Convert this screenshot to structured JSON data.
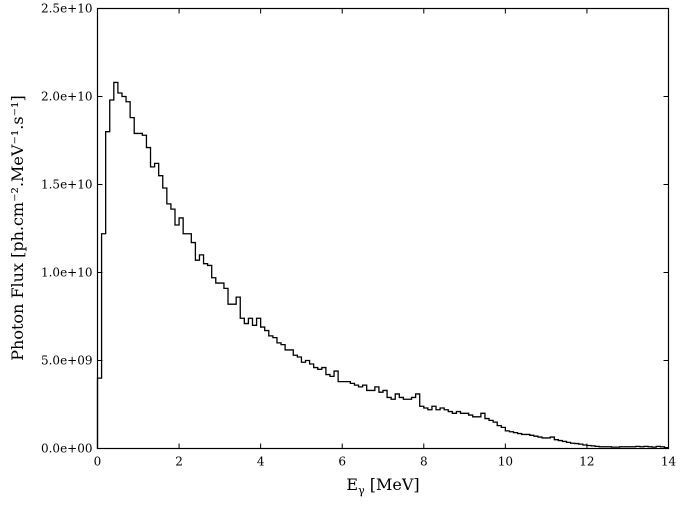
{
  "chart_data": {
    "type": "line",
    "style": "step-histogram",
    "title": "",
    "xlabel": "E_γ [MeV]",
    "xlabel_main": "E",
    "xlabel_sub": "γ",
    "xlabel_unit": " [MeV]",
    "ylabel": "Photon Flux [ph.cm⁻².MeV⁻¹.s⁻¹]",
    "xlim": [
      0,
      14
    ],
    "ylim": [
      0,
      25000000000
    ],
    "grid": false,
    "x_ticks": [
      0,
      2,
      4,
      6,
      8,
      10,
      12,
      14
    ],
    "x_tick_labels": [
      "0",
      "2",
      "4",
      "6",
      "8",
      "10",
      "12",
      "14"
    ],
    "y_ticks": [
      0,
      5000000000,
      10000000000,
      15000000000,
      20000000000,
      25000000000
    ],
    "y_tick_labels": [
      "0.0e+00",
      "5.0e+09",
      "1.0e+10",
      "1.5e+10",
      "2.0e+10",
      "2.5e+10"
    ],
    "bin_width": 0.1,
    "bin_start": 0,
    "value_scale": 1000000000,
    "series": [
      {
        "name": "photon flux",
        "color": "#000000",
        "values": [
          4.0,
          12.2,
          18.0,
          19.8,
          20.8,
          20.2,
          20.0,
          19.7,
          18.8,
          17.9,
          17.9,
          17.8,
          17.1,
          16.0,
          16.2,
          15.5,
          14.8,
          13.9,
          13.6,
          12.7,
          13.1,
          12.2,
          12.2,
          11.7,
          10.7,
          11.0,
          10.5,
          10.4,
          9.7,
          9.4,
          9.4,
          9.1,
          8.2,
          8.2,
          8.6,
          7.4,
          7.1,
          7.4,
          7.0,
          7.4,
          6.9,
          6.7,
          6.4,
          6.3,
          6.0,
          5.9,
          5.6,
          5.6,
          5.3,
          5.2,
          4.9,
          5.0,
          4.8,
          4.6,
          4.5,
          4.6,
          4.2,
          4.1,
          4.4,
          3.8,
          3.8,
          3.8,
          3.7,
          3.6,
          3.5,
          3.6,
          3.3,
          3.3,
          3.5,
          3.2,
          3.3,
          2.9,
          2.8,
          3.1,
          2.9,
          2.8,
          2.8,
          2.9,
          3.1,
          2.4,
          2.3,
          2.2,
          2.4,
          2.2,
          2.3,
          2.2,
          2.1,
          2.0,
          2.1,
          2.0,
          2.0,
          1.9,
          1.8,
          1.8,
          2.0,
          1.7,
          1.6,
          1.5,
          1.3,
          1.2,
          1.0,
          0.95,
          0.9,
          0.85,
          0.8,
          0.8,
          0.75,
          0.7,
          0.65,
          0.6,
          0.6,
          0.65,
          0.5,
          0.45,
          0.4,
          0.35,
          0.3,
          0.28,
          0.25,
          0.2,
          0.17,
          0.15,
          0.12,
          0.1,
          0.1,
          0.1,
          0.08,
          0.08,
          0.1,
          0.1,
          0.1,
          0.1,
          0.12,
          0.1,
          0.12,
          0.1,
          0.08,
          0.12,
          0.1,
          0.05
        ]
      }
    ]
  }
}
